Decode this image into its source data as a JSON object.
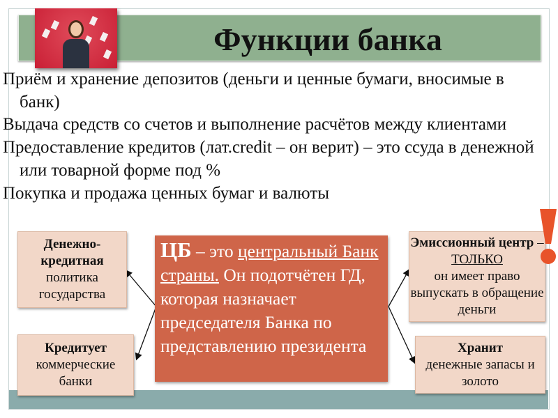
{
  "title": "Функции банка",
  "bullets": [
    "Приём и хранение    депозитов (деньги и ценные бумаги, вносимые в банк)",
    "Выдача средств со счетов и выполнение расчётов между клиентами",
    "Предоставление кредитов (лат.credit – он верит) – это ссуда в денежной или товарной форме под %",
    "Покупка и продажа ценных бумаг и валюты"
  ],
  "bullet_marker": "",
  "center": {
    "bold": "ЦБ",
    "dash": " – это ",
    "underlined": "центральный Банк страны.",
    "rest": " Он подотчётен ГД, которая назначает председателя Банка по представлению президента"
  },
  "boxes": {
    "monetary": {
      "bold": "Денежно-кредитная",
      "text": "политика государства"
    },
    "credits": {
      "bold": "Кредитует",
      "text": "коммерческие банки"
    },
    "emission": {
      "bold": "Эмиссионный центр",
      "dash": " – ",
      "underlined": "ТОЛЬКО",
      "text": "он имеет право выпускать в обращение деньги"
    },
    "stores": {
      "bold": "Хранит",
      "text": "денежные запасы и золото"
    }
  },
  "colors": {
    "title_bar": "#8fb08f",
    "center_box": "#cf6549",
    "side_box": "#f2d7c8",
    "bottom_band": "#8aabab",
    "exclamation": "#e8532a"
  },
  "icons": {
    "exclamation": "exclamation-icon"
  }
}
